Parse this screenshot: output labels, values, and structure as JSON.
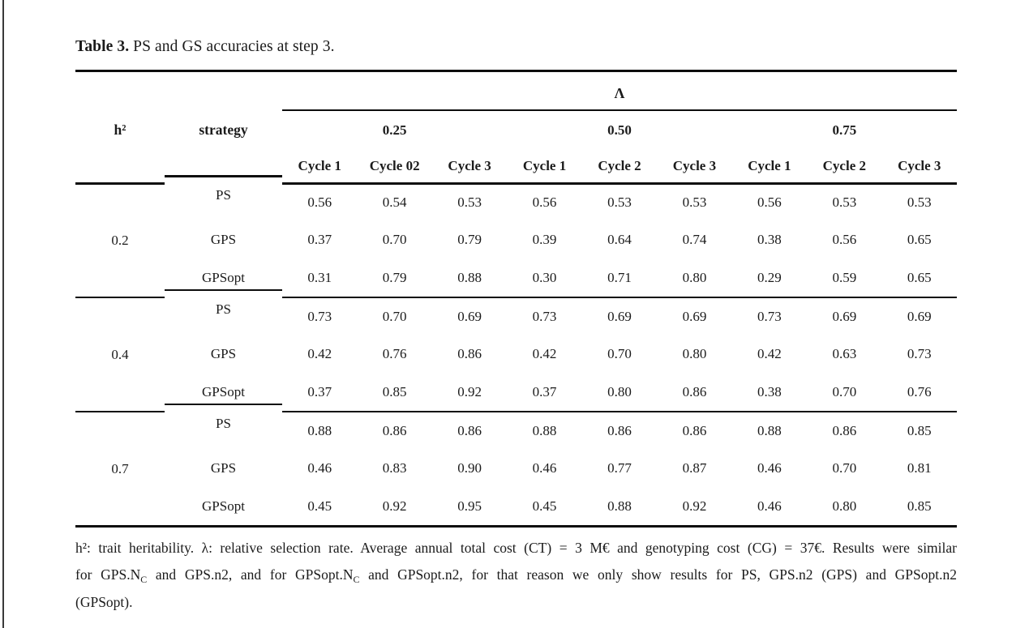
{
  "title": {
    "label": "Table 3.",
    "text": " PS and GS accuracies at step 3."
  },
  "table": {
    "lambda_label": "Λ",
    "col_headers": [
      "h²",
      "strategy"
    ],
    "lambda_groups": [
      "0.25",
      "0.50",
      "0.75"
    ],
    "cycle_headers": [
      "Cycle 1",
      "Cycle 02",
      "Cycle 3",
      "Cycle 1",
      "Cycle 2",
      "Cycle 3",
      "Cycle 1",
      "Cycle 2",
      "Cycle 3"
    ],
    "groups": [
      {
        "h2": "0.2",
        "rows": [
          {
            "strategy": "PS",
            "values": [
              "0.56",
              "0.54",
              "0.53",
              "0.56",
              "0.53",
              "0.53",
              "0.56",
              "0.53",
              "0.53"
            ]
          },
          {
            "strategy": "GPS",
            "values": [
              "0.37",
              "0.70",
              "0.79",
              "0.39",
              "0.64",
              "0.74",
              "0.38",
              "0.56",
              "0.65"
            ]
          },
          {
            "strategy": "GPSopt",
            "values": [
              "0.31",
              "0.79",
              "0.88",
              "0.30",
              "0.71",
              "0.80",
              "0.29",
              "0.59",
              "0.65"
            ]
          }
        ]
      },
      {
        "h2": "0.4",
        "rows": [
          {
            "strategy": "PS",
            "values": [
              "0.73",
              "0.70",
              "0.69",
              "0.73",
              "0.69",
              "0.69",
              "0.73",
              "0.69",
              "0.69"
            ]
          },
          {
            "strategy": "GPS",
            "values": [
              "0.42",
              "0.76",
              "0.86",
              "0.42",
              "0.70",
              "0.80",
              "0.42",
              "0.63",
              "0.73"
            ]
          },
          {
            "strategy": "GPSopt",
            "values": [
              "0.37",
              "0.85",
              "0.92",
              "0.37",
              "0.80",
              "0.86",
              "0.38",
              "0.70",
              "0.76"
            ]
          }
        ]
      },
      {
        "h2": "0.7",
        "rows": [
          {
            "strategy": "PS",
            "values": [
              "0.88",
              "0.86",
              "0.86",
              "0.88",
              "0.86",
              "0.86",
              "0.88",
              "0.86",
              "0.85"
            ]
          },
          {
            "strategy": "GPS",
            "values": [
              "0.46",
              "0.83",
              "0.90",
              "0.46",
              "0.77",
              "0.87",
              "0.46",
              "0.70",
              "0.81"
            ]
          },
          {
            "strategy": "GPSopt",
            "values": [
              "0.45",
              "0.92",
              "0.95",
              "0.45",
              "0.88",
              "0.92",
              "0.46",
              "0.80",
              "0.85"
            ]
          }
        ]
      }
    ]
  },
  "footnote": {
    "lines": [
      [
        {
          "t": "h²: trait heritability. λ: relative selection rate. Average annual total cost (CT) = 3 M€ and genotyping cost (CG) = 37€. Results were similar"
        }
      ],
      [
        {
          "t": "for GPS.N"
        },
        {
          "t": "C",
          "sub": true
        },
        {
          "t": " and GPS.n2, and for GPSopt.N"
        },
        {
          "t": "C",
          "sub": true
        },
        {
          "t": " and GPSopt.n2, for that reason we only show results for PS, GPS.n2 (GPS) and GPSopt.n2"
        }
      ],
      [
        {
          "t": "(GPSopt)."
        }
      ]
    ]
  },
  "colors": {
    "text": "#1b1b1b",
    "rule": "#0d0d0d",
    "page_border": "#3a3a3a",
    "background": "#ffffff"
  }
}
